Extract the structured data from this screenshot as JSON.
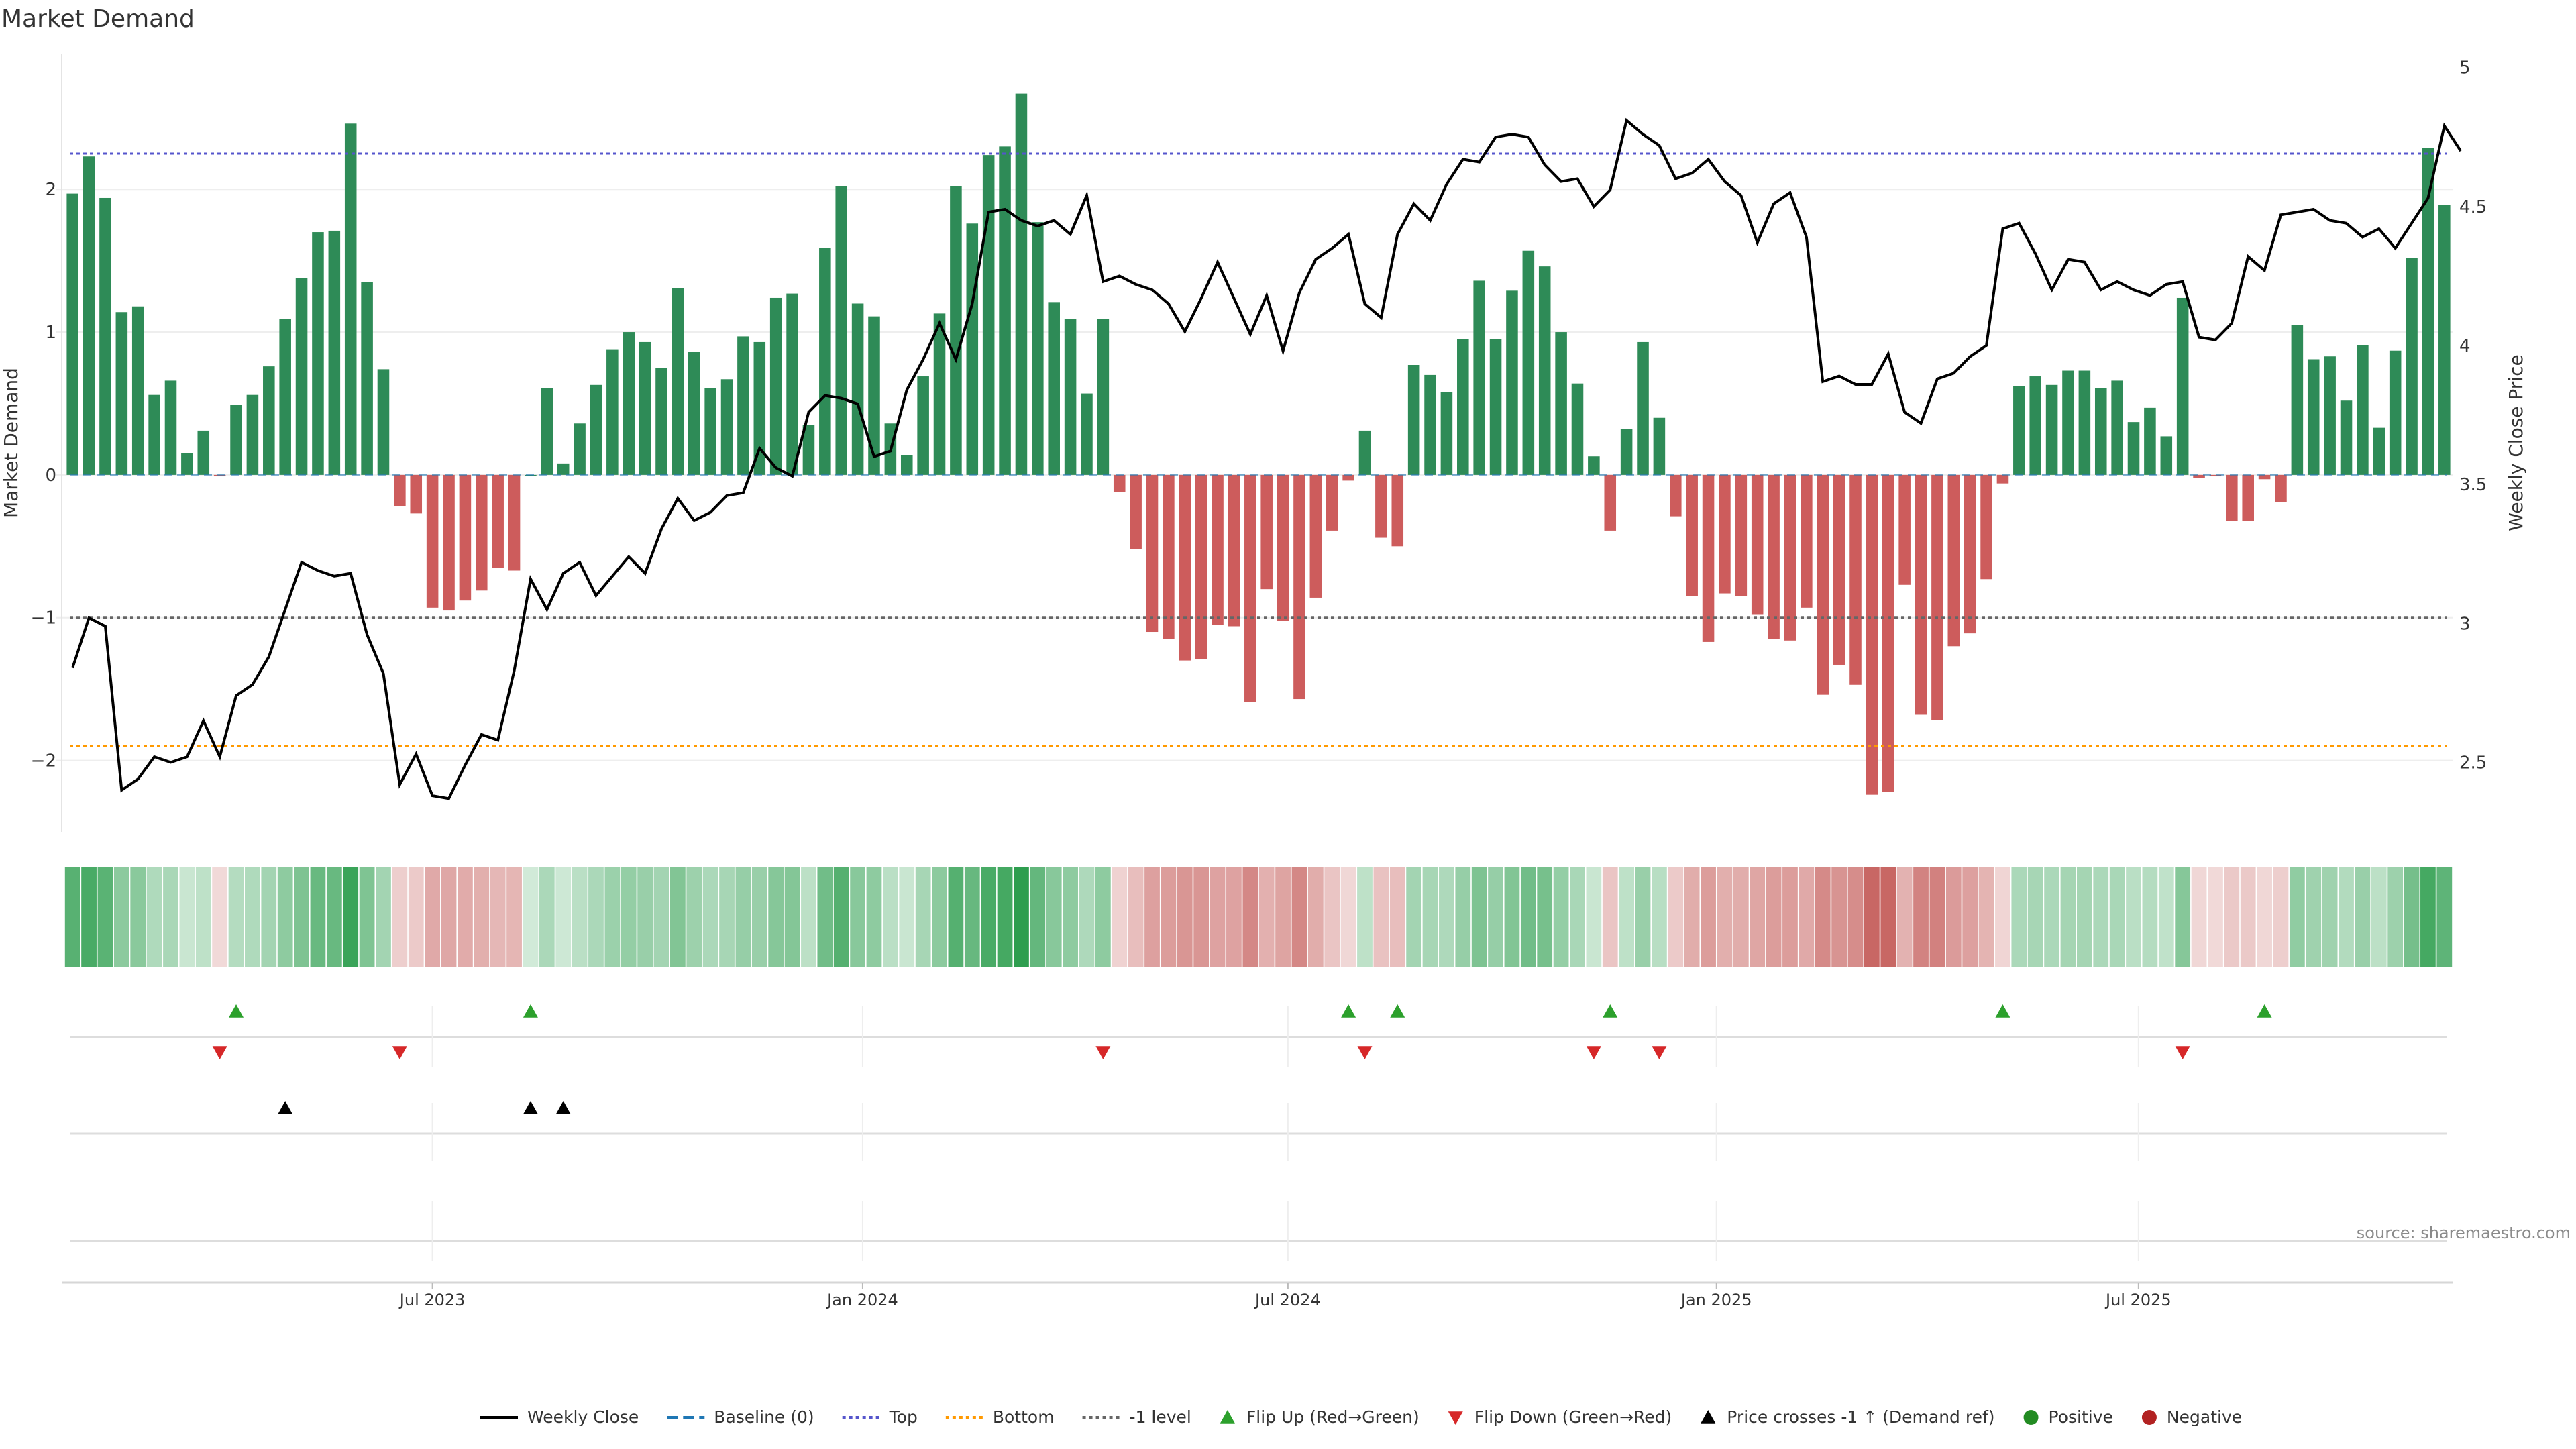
{
  "chart_data": {
    "type": "bar",
    "title": "Market Demand",
    "ylabel_left": "Market Demand",
    "ylabel_right": "Weekly Close Price",
    "source": "source: sharemaestro.com",
    "ylim_left": [
      -2.5,
      2.95
    ],
    "ylim_right": [
      2.25,
      5.05
    ],
    "left_ticks": [
      {
        "v": 2,
        "label": "2"
      },
      {
        "v": 1,
        "label": "1"
      },
      {
        "v": 0,
        "label": "0"
      },
      {
        "v": -1,
        "label": "−1"
      },
      {
        "v": -2,
        "label": "−2"
      }
    ],
    "right_ticks": [
      {
        "v": 5,
        "label": "5"
      },
      {
        "v": 4.5,
        "label": "4.5"
      },
      {
        "v": 4,
        "label": "4"
      },
      {
        "v": 3.5,
        "label": "3.5"
      },
      {
        "v": 3,
        "label": "3"
      },
      {
        "v": 2.5,
        "label": "2.5"
      }
    ],
    "x_ticks": [
      {
        "week": 22,
        "label": "Jul 2023"
      },
      {
        "week": 48.3,
        "label": "Jan 2024"
      },
      {
        "week": 74.3,
        "label": "Jul 2024"
      },
      {
        "week": 100.5,
        "label": "Jan 2025"
      },
      {
        "week": 126.3,
        "label": "Jul 2025"
      }
    ],
    "reference_lines": {
      "top": 2.25,
      "bottom": -1.9,
      "minus_one": -1.0
    },
    "demand": [
      1.97,
      2.23,
      1.94,
      1.14,
      1.18,
      0.56,
      0.66,
      0.15,
      0.31,
      -0.01,
      0.49,
      0.56,
      0.76,
      1.09,
      1.38,
      1.7,
      1.71,
      2.46,
      1.35,
      0.74,
      -0.22,
      -0.27,
      -0.93,
      -0.95,
      -0.88,
      -0.81,
      -0.65,
      -0.67,
      0.0,
      0.61,
      0.08,
      0.36,
      0.63,
      0.88,
      1.0,
      0.93,
      0.75,
      1.31,
      0.86,
      0.61,
      0.67,
      0.97,
      0.93,
      1.24,
      1.27,
      0.35,
      1.59,
      2.02,
      1.2,
      1.11,
      0.36,
      0.14,
      0.69,
      1.13,
      2.02,
      1.76,
      2.24,
      2.3,
      2.67,
      1.77,
      1.21,
      1.09,
      0.57,
      1.09,
      -0.12,
      -0.52,
      -1.1,
      -1.15,
      -1.3,
      -1.29,
      -1.05,
      -1.06,
      -1.59,
      -0.8,
      -1.02,
      -1.57,
      -0.86,
      -0.39,
      -0.04,
      0.31,
      -0.44,
      -0.5,
      0.77,
      0.7,
      0.58,
      0.95,
      1.36,
      0.95,
      1.29,
      1.57,
      1.46,
      1.0,
      0.64,
      0.13,
      -0.39,
      0.32,
      0.93,
      0.4,
      -0.29,
      -0.85,
      -1.17,
      -0.83,
      -0.85,
      -0.98,
      -1.15,
      -1.16,
      -0.93,
      -1.54,
      -1.33,
      -1.47,
      -2.24,
      -2.22,
      -0.77,
      -1.68,
      -1.72,
      -1.2,
      -1.11,
      -0.73,
      -0.06,
      0.62,
      0.69,
      0.63,
      0.73,
      0.73,
      0.61,
      0.66,
      0.37,
      0.47,
      0.27,
      1.24,
      -0.02,
      -0.01,
      -0.32,
      -0.32,
      -0.03,
      -0.19,
      1.05,
      0.81,
      0.83,
      0.52,
      0.91,
      0.33,
      0.87,
      1.52,
      2.29,
      1.89
    ],
    "weekly_close": [
      2.84,
      3.02,
      2.99,
      2.4,
      2.44,
      2.52,
      2.5,
      2.52,
      2.65,
      2.52,
      2.74,
      2.78,
      2.88,
      3.05,
      3.22,
      3.19,
      3.17,
      3.18,
      2.96,
      2.82,
      2.42,
      2.53,
      2.38,
      2.37,
      2.49,
      2.6,
      2.58,
      2.83,
      3.16,
      3.05,
      3.18,
      3.22,
      3.1,
      3.17,
      3.24,
      3.18,
      3.34,
      3.45,
      3.37,
      3.4,
      3.46,
      3.47,
      3.63,
      3.56,
      3.53,
      3.76,
      3.82,
      3.81,
      3.79,
      3.6,
      3.62,
      3.84,
      3.95,
      4.08,
      3.95,
      4.15,
      4.48,
      4.49,
      4.45,
      4.43,
      4.45,
      4.4,
      4.54,
      4.23,
      4.25,
      4.22,
      4.2,
      4.15,
      4.05,
      4.17,
      4.3,
      4.17,
      4.04,
      4.18,
      3.98,
      4.19,
      4.31,
      4.35,
      4.4,
      4.15,
      4.1,
      4.4,
      4.51,
      4.45,
      4.58,
      4.67,
      4.66,
      4.75,
      4.76,
      4.75,
      4.65,
      4.59,
      4.6,
      4.5,
      4.56,
      4.81,
      4.76,
      4.72,
      4.6,
      4.62,
      4.67,
      4.59,
      4.54,
      4.37,
      4.51,
      4.55,
      4.39,
      3.87,
      3.89,
      3.86,
      3.86,
      3.97,
      3.76,
      3.72,
      3.88,
      3.9,
      3.96,
      4.0,
      4.42,
      4.44,
      4.33,
      4.2,
      4.31,
      4.3,
      4.2,
      4.23,
      4.2,
      4.18,
      4.22,
      4.23,
      4.03,
      4.02,
      4.08,
      4.32,
      4.27,
      4.47,
      4.48,
      4.49,
      4.45,
      4.44,
      4.39,
      4.42,
      4.35,
      4.44,
      4.53,
      4.79,
      4.7
    ],
    "flip_up_weeks": [
      10,
      28,
      78,
      81,
      94,
      118,
      134
    ],
    "flip_down_weeks": [
      9,
      20,
      63,
      79,
      93,
      97,
      129
    ],
    "price_cross_weeks": [
      13,
      28,
      30
    ],
    "legend": [
      {
        "label": "Weekly Close",
        "kind": "solid-line",
        "color": "#000000"
      },
      {
        "label": "Baseline (0)",
        "kind": "dash-line",
        "color": "#1f77b4"
      },
      {
        "label": "Top",
        "kind": "dot-line",
        "color": "#5555cc"
      },
      {
        "label": "Bottom",
        "kind": "dot-line",
        "color": "#ff9900"
      },
      {
        "label": "-1 level",
        "kind": "dot-line",
        "color": "#666666"
      },
      {
        "label": "Flip Up (Red→Green)",
        "kind": "tri-up",
        "color": "#2ca02c"
      },
      {
        "label": "Flip Down (Green→Red)",
        "kind": "tri-down",
        "color": "#d62728"
      },
      {
        "label": "Price crosses -1 ↑ (Demand ref)",
        "kind": "tri-up",
        "color": "#000000"
      },
      {
        "label": "Positive",
        "kind": "circle",
        "color": "#228b22"
      },
      {
        "label": "Negative",
        "kind": "circle",
        "color": "#b22222"
      }
    ],
    "colors": {
      "positive_bar": "#2e8b57",
      "negative_bar": "#cd5c5c",
      "price_line": "#000000",
      "heat_positive": "#2e9e4f",
      "heat_negative": "#c0504d"
    }
  }
}
